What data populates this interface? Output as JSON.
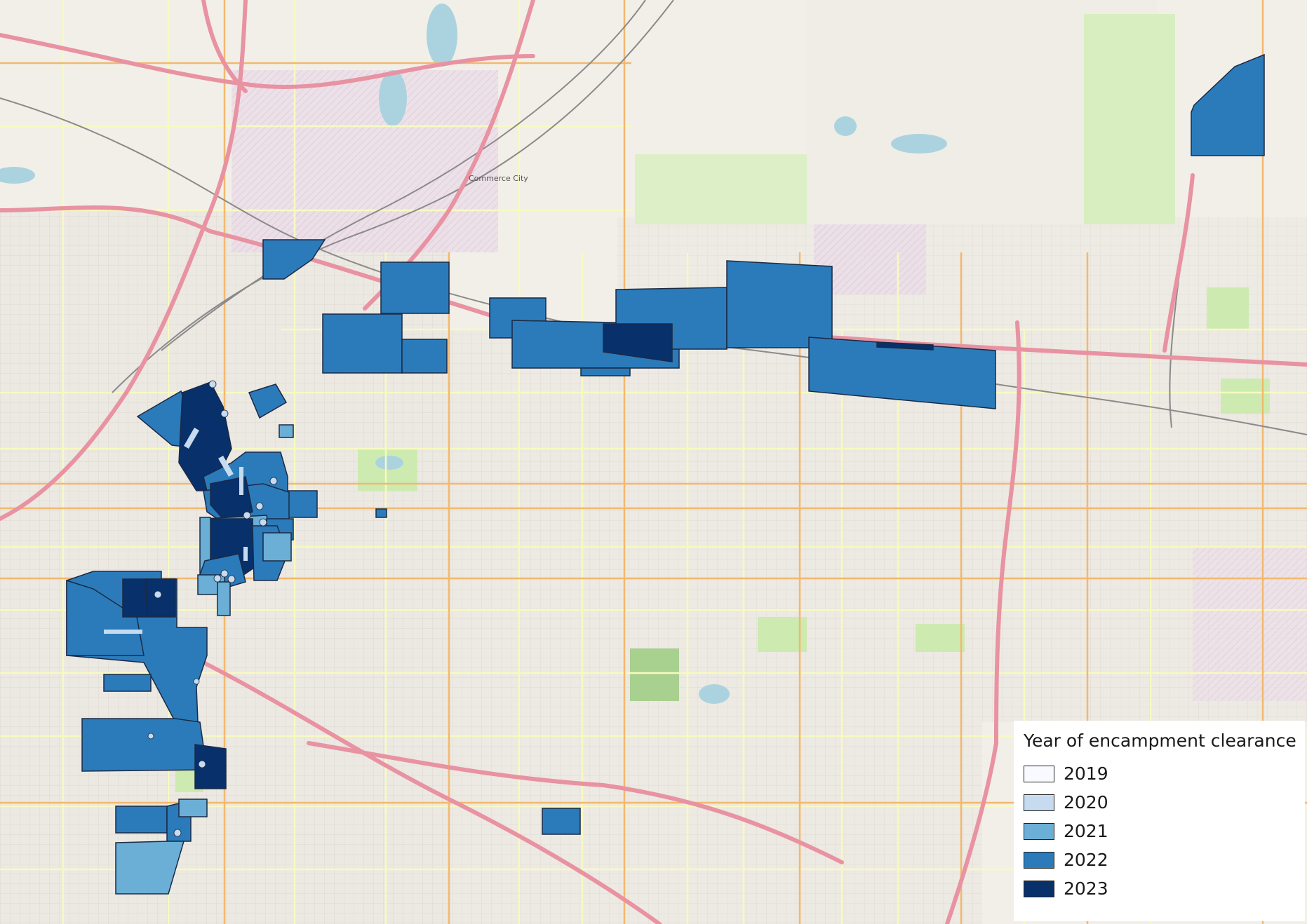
{
  "legend": {
    "title": "Year of encampment clearance",
    "items": [
      {
        "year": "2019",
        "color": "#f7fbff"
      },
      {
        "year": "2020",
        "color": "#c6dbef"
      },
      {
        "year": "2021",
        "color": "#6baed6"
      },
      {
        "year": "2022",
        "color": "#2b7bba"
      },
      {
        "year": "2023",
        "color": "#08306b"
      }
    ]
  },
  "basemap": {
    "labels": [
      "Commerce City"
    ]
  },
  "colors": {
    "land": "#f2efe9",
    "park": "#cdebb0",
    "industrial": "#ebdbe8",
    "water": "#aad3df",
    "highway": "#e892a2",
    "arterial": "#f9c98a",
    "minor": "#f7fabf",
    "residential": "#e4e0db",
    "polygon_stroke": "#1b2a44"
  }
}
